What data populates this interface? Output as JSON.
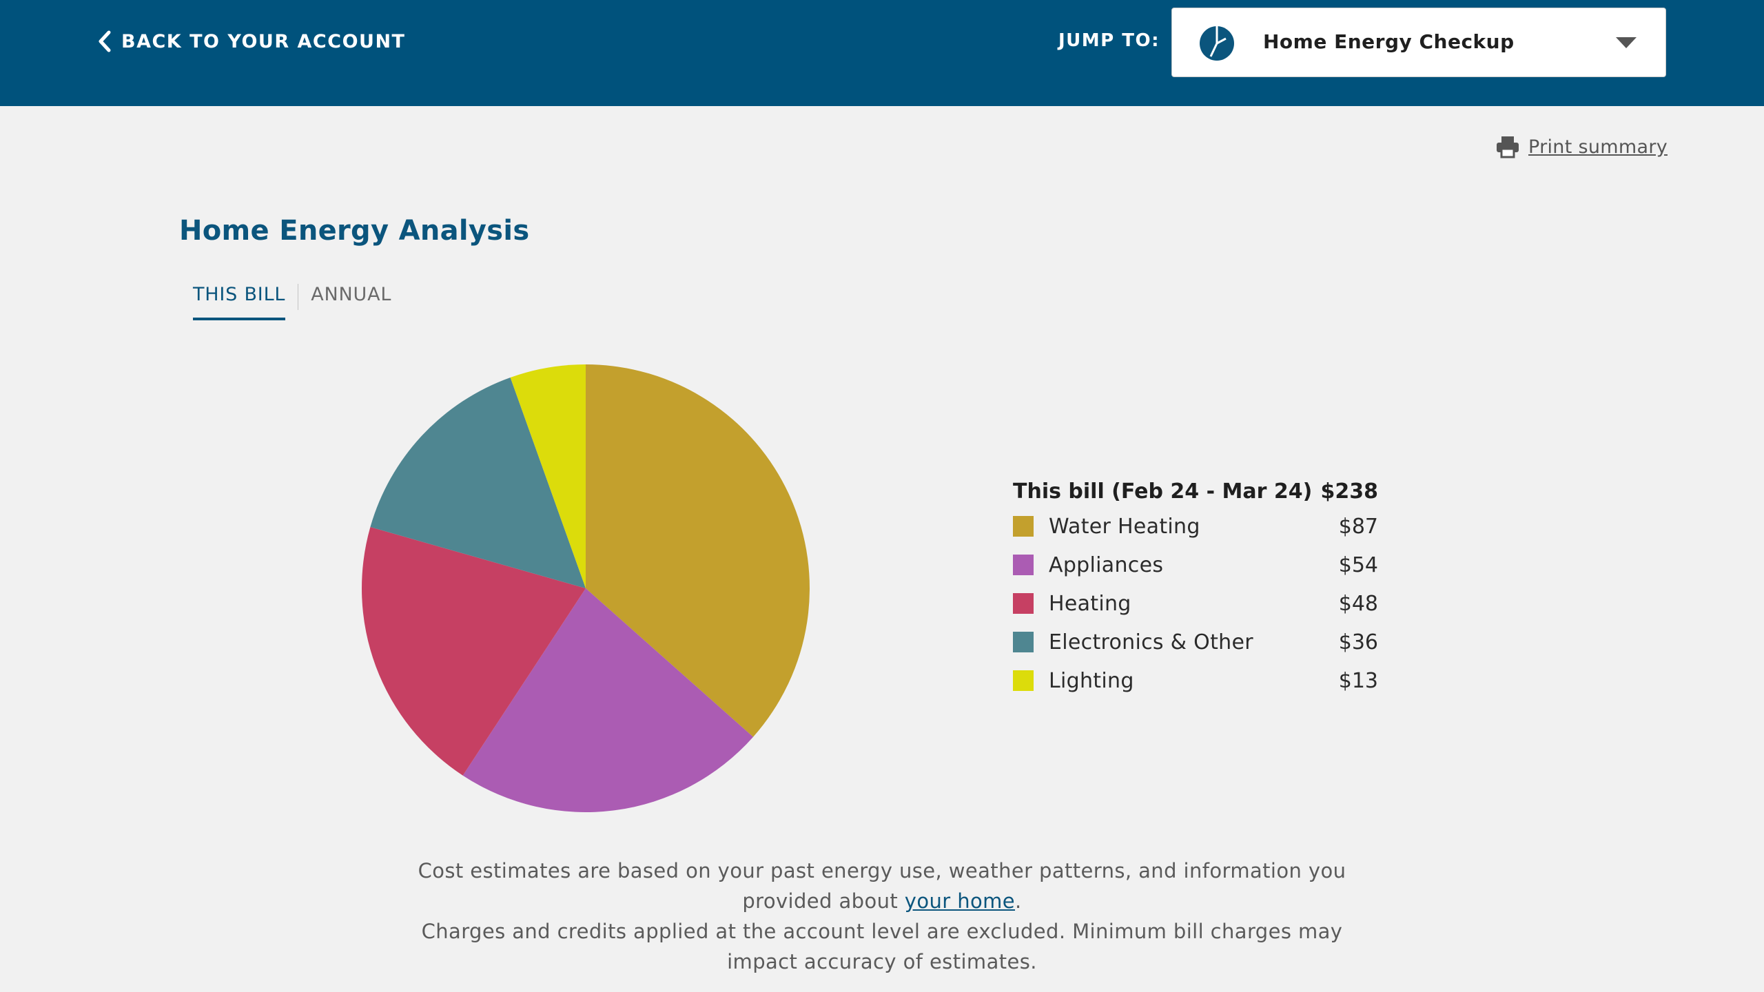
{
  "header": {
    "back_label": "BACK TO YOUR ACCOUNT",
    "jump_label": "JUMP TO:",
    "jump_selected": "Home Energy Checkup"
  },
  "print_label": "Print summary",
  "page_title": "Home Energy Analysis",
  "tabs": [
    {
      "label": "THIS BILL",
      "active": true
    },
    {
      "label": "ANNUAL",
      "active": false
    }
  ],
  "legend": {
    "title": "This bill (Feb 24 - Mar 24)",
    "total": "$238",
    "items": [
      {
        "label": "Water Heating",
        "value": "$87",
        "color": "#c3a02d"
      },
      {
        "label": "Appliances",
        "value": "$54",
        "color": "#ab5cb3"
      },
      {
        "label": "Heating",
        "value": "$48",
        "color": "#c64063"
      },
      {
        "label": "Electronics & Other",
        "value": "$36",
        "color": "#4f8691"
      },
      {
        "label": "Lighting",
        "value": "$13",
        "color": "#dcdc0b"
      }
    ]
  },
  "chart_data": {
    "type": "pie",
    "title": "",
    "categories": [
      "Water Heating",
      "Appliances",
      "Heating",
      "Electronics & Other",
      "Lighting"
    ],
    "values": [
      87,
      54,
      48,
      36,
      13
    ],
    "colors": [
      "#c3a02d",
      "#ab5cb3",
      "#c64063",
      "#4f8691",
      "#dcdc0b"
    ],
    "start": "12 o'clock",
    "direction": "clockwise",
    "legend": "right"
  },
  "footnote": {
    "line1_a": "Cost estimates are based on your past energy use, weather patterns, and information you provided about ",
    "link": "your home",
    "line1_b": ".",
    "line2": "Charges and credits applied at the account level are excluded. Minimum bill charges may impact accuracy of estimates."
  },
  "colors": {
    "header_bg": "#00527c",
    "accent": "#0b557d",
    "page_bg": "#f1f1f1"
  },
  "icons": {
    "back": "chevron-left-icon",
    "jump": "pie-chart-icon",
    "caret": "caret-down-icon",
    "print": "printer-icon"
  }
}
